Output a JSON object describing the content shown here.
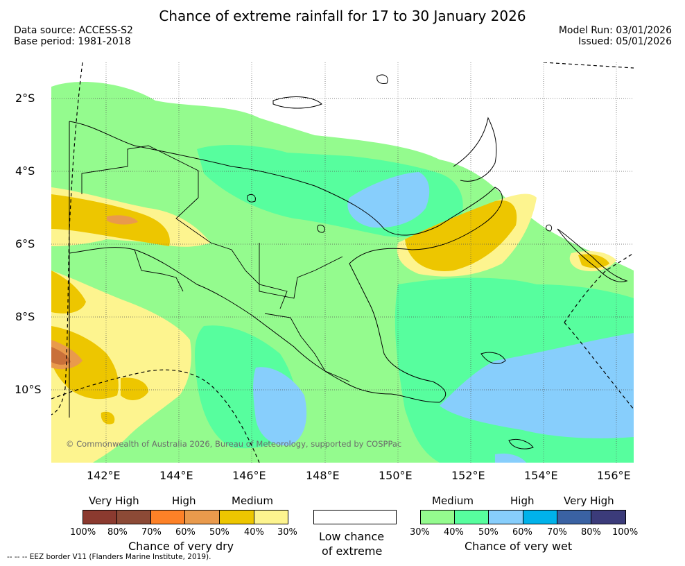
{
  "header": {
    "title": "Chance of extreme rainfall for 17 to 30 January 2026",
    "data_source": "Data source: ACCESS-S2",
    "base_period": "Base period: 1981-2018",
    "model_run": "Model Run: 03/01/2026",
    "issued": "Issued: 05/01/2026"
  },
  "axes": {
    "y_labels": [
      "2°S",
      "4°S",
      "6°S",
      "8°S",
      "10°S"
    ],
    "x_labels": [
      "142°E",
      "144°E",
      "146°E",
      "148°E",
      "150°E",
      "152°E",
      "154°E",
      "156°E"
    ]
  },
  "credit": "© Commonwealth of Australia 2026, Bureau of Meteorology, supported by COSPPac",
  "legend": {
    "dry": {
      "levels": [
        "Very High",
        "High",
        "Medium"
      ],
      "colors": [
        "#8b3a2f",
        "#8c4a36",
        "#fd8127",
        "#e99a4c",
        "#edc600",
        "#fdf48f"
      ],
      "ticks": [
        "100%",
        "80%",
        "70%",
        "60%",
        "50%",
        "40%",
        "30%"
      ],
      "caption": "Chance of very dry"
    },
    "low": {
      "caption_line1": "Low chance",
      "caption_line2": "of extreme"
    },
    "wet": {
      "levels": [
        "Medium",
        "High",
        "Very High"
      ],
      "colors": [
        "#94fb8e",
        "#57fe9e",
        "#87cefc",
        "#00b2ea",
        "#3a62a3",
        "#3b3b7a"
      ],
      "ticks": [
        "30%",
        "40%",
        "50%",
        "60%",
        "70%",
        "80%",
        "100%"
      ],
      "caption": "Chance of very wet"
    }
  },
  "eez_note": "--  --  -- EEZ border V11 (Flanders Marine Institute, 2019)."
}
